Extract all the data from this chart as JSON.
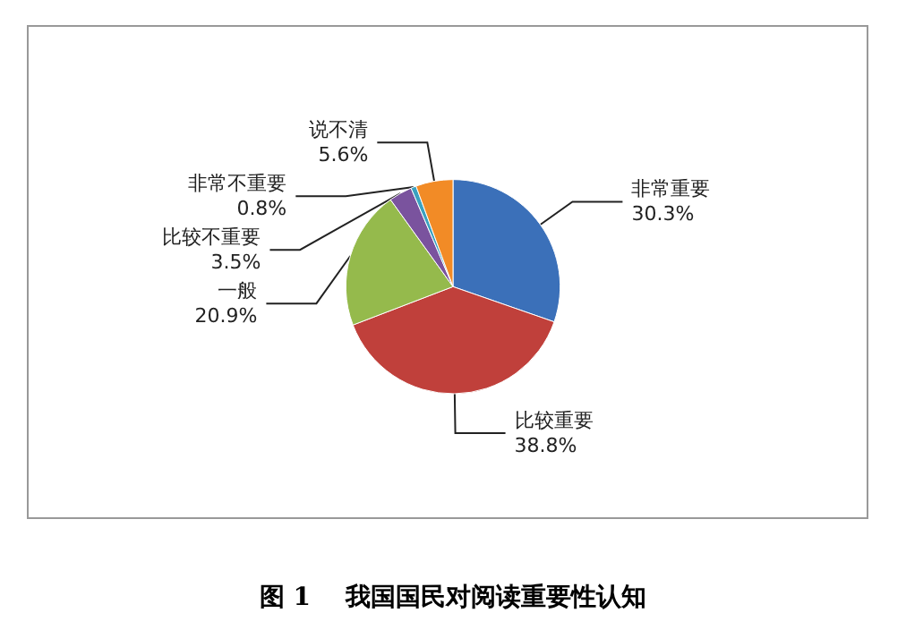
{
  "chart_data": {
    "type": "pie",
    "title": "图 1    我国国民对阅读重要性认知",
    "categories": [
      "非常重要",
      "比较重要",
      "一般",
      "比较不重要",
      "非常不重要",
      "说不清"
    ],
    "values": [
      30.3,
      38.8,
      20.9,
      3.5,
      0.8,
      5.6
    ],
    "value_labels": [
      "30.3%",
      "38.8%",
      "20.9%",
      "3.5%",
      "0.8%",
      "5.6%"
    ],
    "colors": [
      "#3b70b9",
      "#c0403b",
      "#95ba4c",
      "#7a539e",
      "#3ba1c0",
      "#f28b26"
    ],
    "legend": false
  }
}
